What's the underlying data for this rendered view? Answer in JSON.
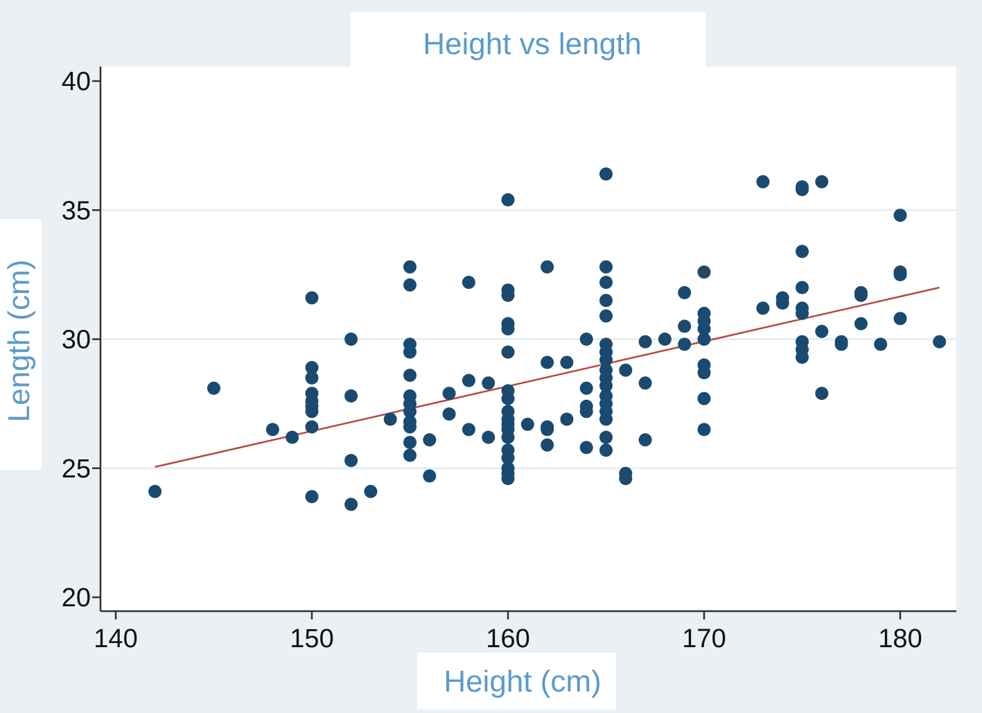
{
  "chart_data": {
    "type": "scatter",
    "title": "Height vs length",
    "xlabel": "Height (cm)",
    "ylabel": "Length (cm)",
    "xlim": [
      139,
      183
    ],
    "ylim": [
      19.5,
      40.5
    ],
    "x_ticks": [
      140,
      150,
      160,
      170,
      180
    ],
    "y_ticks": [
      20,
      25,
      30,
      35,
      40
    ],
    "grid": "horizontal",
    "legend": "none",
    "colors": {
      "background": "#eaf0f3",
      "plot_area": "#ffffff",
      "points": "#1a4a70",
      "fit_line": "#b5493f",
      "title": "#5b9bc9",
      "gridline": "#e8eef1",
      "axis": "#333333"
    },
    "fit_line": {
      "x": [
        142,
        182
      ],
      "y": [
        25.05,
        32.0
      ]
    },
    "series": [
      {
        "points": [
          [
            142,
            24.1
          ],
          [
            145,
            28.1
          ],
          [
            148,
            26.5
          ],
          [
            149,
            26.2
          ],
          [
            150,
            31.6
          ],
          [
            150,
            28.9
          ],
          [
            150,
            28.5
          ],
          [
            150,
            27.9
          ],
          [
            150,
            27.6
          ],
          [
            150,
            27.4
          ],
          [
            150,
            27.2
          ],
          [
            150,
            26.6
          ],
          [
            150,
            23.9
          ],
          [
            152,
            30.0
          ],
          [
            152,
            27.8
          ],
          [
            152,
            25.3
          ],
          [
            152,
            23.6
          ],
          [
            153,
            24.1
          ],
          [
            154,
            26.9
          ],
          [
            155,
            32.8
          ],
          [
            155,
            32.1
          ],
          [
            155,
            29.8
          ],
          [
            155,
            29.5
          ],
          [
            155,
            28.6
          ],
          [
            155,
            27.8
          ],
          [
            155,
            27.5
          ],
          [
            155,
            27.2
          ],
          [
            155,
            26.8
          ],
          [
            155,
            26.6
          ],
          [
            155,
            26.0
          ],
          [
            155,
            25.5
          ],
          [
            156,
            26.1
          ],
          [
            156,
            24.7
          ],
          [
            157,
            27.9
          ],
          [
            157,
            27.1
          ],
          [
            158,
            32.2
          ],
          [
            158,
            28.4
          ],
          [
            158,
            26.5
          ],
          [
            159,
            28.3
          ],
          [
            159,
            26.2
          ],
          [
            160,
            35.4
          ],
          [
            160,
            31.9
          ],
          [
            160,
            31.7
          ],
          [
            160,
            30.6
          ],
          [
            160,
            30.4
          ],
          [
            160,
            29.5
          ],
          [
            160,
            28.0
          ],
          [
            160,
            27.7
          ],
          [
            160,
            27.2
          ],
          [
            160,
            26.9
          ],
          [
            160,
            26.7
          ],
          [
            160,
            26.5
          ],
          [
            160,
            26.2
          ],
          [
            160,
            25.7
          ],
          [
            160,
            25.4
          ],
          [
            160,
            25.0
          ],
          [
            160,
            24.8
          ],
          [
            160,
            24.6
          ],
          [
            161,
            26.7
          ],
          [
            162,
            32.8
          ],
          [
            162,
            29.1
          ],
          [
            162,
            26.6
          ],
          [
            162,
            26.5
          ],
          [
            162,
            25.9
          ],
          [
            163,
            29.1
          ],
          [
            163,
            26.9
          ],
          [
            164,
            30.0
          ],
          [
            164,
            28.1
          ],
          [
            164,
            27.4
          ],
          [
            164,
            27.2
          ],
          [
            164,
            25.8
          ],
          [
            165,
            36.4
          ],
          [
            165,
            32.8
          ],
          [
            165,
            32.2
          ],
          [
            165,
            31.5
          ],
          [
            165,
            30.9
          ],
          [
            165,
            29.8
          ],
          [
            165,
            29.5
          ],
          [
            165,
            29.2
          ],
          [
            165,
            28.8
          ],
          [
            165,
            28.5
          ],
          [
            165,
            28.2
          ],
          [
            165,
            27.8
          ],
          [
            165,
            27.5
          ],
          [
            165,
            27.2
          ],
          [
            165,
            26.9
          ],
          [
            165,
            26.2
          ],
          [
            165,
            25.7
          ],
          [
            166,
            28.8
          ],
          [
            166,
            24.8
          ],
          [
            166,
            24.6
          ],
          [
            167,
            29.9
          ],
          [
            167,
            28.3
          ],
          [
            167,
            26.1
          ],
          [
            168,
            30.0
          ],
          [
            169,
            31.8
          ],
          [
            169,
            30.5
          ],
          [
            169,
            29.8
          ],
          [
            170,
            32.6
          ],
          [
            170,
            31.0
          ],
          [
            170,
            30.7
          ],
          [
            170,
            30.4
          ],
          [
            170,
            30.0
          ],
          [
            170,
            29.0
          ],
          [
            170,
            28.7
          ],
          [
            170,
            27.7
          ],
          [
            170,
            26.5
          ],
          [
            173,
            36.1
          ],
          [
            173,
            31.2
          ],
          [
            174,
            31.6
          ],
          [
            174,
            31.4
          ],
          [
            175,
            35.9
          ],
          [
            175,
            35.8
          ],
          [
            175,
            33.4
          ],
          [
            175,
            32.0
          ],
          [
            175,
            31.2
          ],
          [
            175,
            31.0
          ],
          [
            175,
            29.9
          ],
          [
            175,
            29.6
          ],
          [
            175,
            29.3
          ],
          [
            176,
            36.1
          ],
          [
            176,
            30.3
          ],
          [
            176,
            27.9
          ],
          [
            177,
            29.9
          ],
          [
            177,
            29.8
          ],
          [
            178,
            31.8
          ],
          [
            178,
            31.7
          ],
          [
            178,
            30.6
          ],
          [
            179,
            29.8
          ],
          [
            180,
            34.8
          ],
          [
            180,
            32.6
          ],
          [
            180,
            32.5
          ],
          [
            180,
            30.8
          ],
          [
            182,
            29.9
          ]
        ]
      }
    ]
  }
}
